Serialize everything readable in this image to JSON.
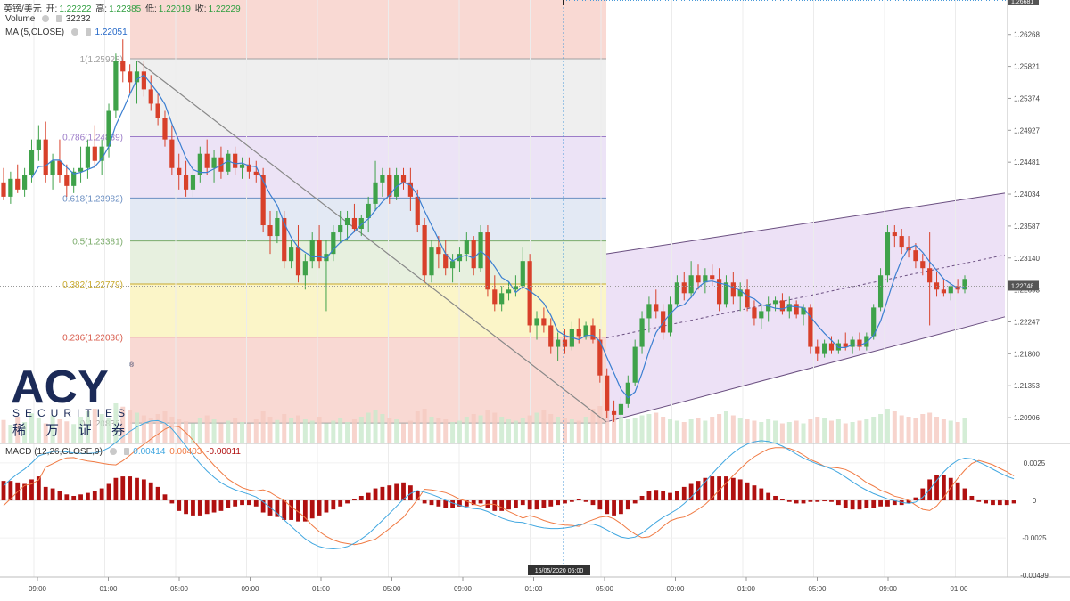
{
  "header": {
    "symbol": "英镑/美元",
    "ohlc_labels": [
      "开:",
      "高:",
      "低:",
      "收:"
    ],
    "ohlc_values": [
      "1.22222",
      "1.22385",
      "1.22019",
      "1.22229"
    ],
    "volume_label": "Volume",
    "volume_value": "32232",
    "ma_label": "MA (5,CLOSE)",
    "ma_value": "1.22051",
    "macd_label": "MACD (12,26,CLOSE,9)",
    "macd_values": [
      "0.00414",
      "0.00403",
      "-0.00011"
    ]
  },
  "logo": {
    "name": "ACY",
    "sub": "SECURITIES",
    "cn": "稀万证券",
    "reg": "®"
  },
  "colors": {
    "up": "#3fa24a",
    "down": "#d8402a",
    "ma": "#3b7fd1",
    "macd_line": "#41a7e0",
    "signal_line": "#f07a43",
    "hist": "#b01010",
    "channel_fill": "#eadcf5",
    "channel_line": "#6a4f80"
  },
  "chart_data": {
    "type": "candlestick",
    "price_axis_ticks": [
      "1.26268",
      "1.25821",
      "1.25374",
      "1.24927",
      "1.24481",
      "1.24034",
      "1.23587",
      "1.23140",
      "1.22693",
      "1.22247",
      "1.21800",
      "1.21353",
      "1.20906"
    ],
    "current_price_label": "1.22748",
    "top_price_label": "1.26681",
    "macd_axis_ticks": [
      "0.0025",
      "0",
      "-0.0025",
      "-0.00499"
    ],
    "time_axis_ticks": [
      "09:00",
      "01:00",
      "05:00",
      "09:00",
      "01:00",
      "05:00",
      "09:00",
      "01:00",
      "05:00",
      "09:00",
      "01:00",
      "05:00",
      "09:00",
      "01:00"
    ],
    "crosshair_label": "15/05/2020 05:00",
    "fib_levels": [
      {
        "label": "1(1.25928)",
        "value": 1.25928,
        "color": "#a0a0a0"
      },
      {
        "label": "0.786(1.24839)",
        "value": 1.24839,
        "color": "#9c7cc8"
      },
      {
        "label": "0.618(1.23982)",
        "value": 1.23982,
        "color": "#6a8ec2"
      },
      {
        "label": "0.5(1.23381)",
        "value": 1.23381,
        "color": "#7aab6a"
      },
      {
        "label": "0.382(1.22779)",
        "value": 1.22779,
        "color": "#c8a92c"
      },
      {
        "label": "0.236(1.22036)",
        "value": 1.22036,
        "color": "#d85a4a"
      },
      {
        "label": "0(1.20835)",
        "value": 1.20835,
        "color": "#a0a0a0"
      }
    ],
    "y_range": [
      1.2055,
      1.2675
    ],
    "candles": [
      [
        1.242,
        1.244,
        1.2395,
        1.24
      ],
      [
        1.24,
        1.2435,
        1.239,
        1.2425
      ],
      [
        1.2425,
        1.2445,
        1.2405,
        1.241
      ],
      [
        1.241,
        1.244,
        1.24,
        1.243
      ],
      [
        1.243,
        1.248,
        1.242,
        1.2465
      ],
      [
        1.2465,
        1.25,
        1.245,
        1.248
      ],
      [
        1.248,
        1.2505,
        1.242,
        1.243
      ],
      [
        1.243,
        1.246,
        1.241,
        1.245
      ],
      [
        1.245,
        1.248,
        1.242,
        1.243
      ],
      [
        1.243,
        1.2445,
        1.24,
        1.2415
      ],
      [
        1.2415,
        1.244,
        1.2405,
        1.2435
      ],
      [
        1.2435,
        1.247,
        1.242,
        1.244
      ],
      [
        1.244,
        1.248,
        1.2425,
        1.247
      ],
      [
        1.247,
        1.25,
        1.244,
        1.245
      ],
      [
        1.245,
        1.248,
        1.243,
        1.247
      ],
      [
        1.247,
        1.253,
        1.2455,
        1.252
      ],
      [
        1.252,
        1.26,
        1.251,
        1.259
      ],
      [
        1.259,
        1.262,
        1.256,
        1.2575
      ],
      [
        1.2575,
        1.2585,
        1.2545,
        1.256
      ],
      [
        1.256,
        1.259,
        1.253,
        1.2575
      ],
      [
        1.2575,
        1.259,
        1.254,
        1.255
      ],
      [
        1.255,
        1.257,
        1.252,
        1.253
      ],
      [
        1.253,
        1.2545,
        1.25,
        1.251
      ],
      [
        1.251,
        1.252,
        1.247,
        1.248
      ],
      [
        1.248,
        1.25,
        1.243,
        1.244
      ],
      [
        1.244,
        1.246,
        1.241,
        1.243
      ],
      [
        1.243,
        1.245,
        1.24,
        1.241
      ],
      [
        1.241,
        1.244,
        1.24,
        1.243
      ],
      [
        1.243,
        1.247,
        1.242,
        1.246
      ],
      [
        1.246,
        1.248,
        1.243,
        1.244
      ],
      [
        1.244,
        1.2465,
        1.242,
        1.2455
      ],
      [
        1.2455,
        1.247,
        1.2425,
        1.2435
      ],
      [
        1.2435,
        1.2465,
        1.243,
        1.246
      ],
      [
        1.246,
        1.247,
        1.243,
        1.244
      ],
      [
        1.244,
        1.2455,
        1.2425,
        1.2445
      ],
      [
        1.2445,
        1.2455,
        1.2425,
        1.2435
      ],
      [
        1.2435,
        1.245,
        1.242,
        1.243
      ],
      [
        1.243,
        1.244,
        1.235,
        1.236
      ],
      [
        1.236,
        1.238,
        1.232,
        1.2345
      ],
      [
        1.2345,
        1.238,
        1.2335,
        1.237
      ],
      [
        1.237,
        1.238,
        1.23,
        1.231
      ],
      [
        1.231,
        1.234,
        1.23,
        1.233
      ],
      [
        1.233,
        1.236,
        1.228,
        1.229
      ],
      [
        1.229,
        1.232,
        1.227,
        1.231
      ],
      [
        1.231,
        1.235,
        1.23,
        1.234
      ],
      [
        1.234,
        1.236,
        1.23,
        1.231
      ],
      [
        1.231,
        1.234,
        1.224,
        1.232
      ],
      [
        1.232,
        1.236,
        1.231,
        1.235
      ],
      [
        1.235,
        1.238,
        1.2335,
        1.236
      ],
      [
        1.236,
        1.238,
        1.234,
        1.237
      ],
      [
        1.237,
        1.239,
        1.235,
        1.2355
      ],
      [
        1.2355,
        1.2375,
        1.2345,
        1.237
      ],
      [
        1.237,
        1.24,
        1.235,
        1.239
      ],
      [
        1.239,
        1.245,
        1.238,
        1.242
      ],
      [
        1.242,
        1.244,
        1.24,
        1.243
      ],
      [
        1.243,
        1.244,
        1.239,
        1.24
      ],
      [
        1.24,
        1.244,
        1.2395,
        1.243
      ],
      [
        1.243,
        1.244,
        1.241,
        1.242
      ],
      [
        1.242,
        1.244,
        1.238,
        1.24
      ],
      [
        1.24,
        1.241,
        1.235,
        1.236
      ],
      [
        1.236,
        1.237,
        1.228,
        1.229
      ],
      [
        1.229,
        1.234,
        1.228,
        1.233
      ],
      [
        1.233,
        1.2345,
        1.23,
        1.232
      ],
      [
        1.232,
        1.234,
        1.229,
        1.23
      ],
      [
        1.23,
        1.232,
        1.228,
        1.231
      ],
      [
        1.231,
        1.233,
        1.2295,
        1.232
      ],
      [
        1.232,
        1.235,
        1.231,
        1.234
      ],
      [
        1.234,
        1.2345,
        1.229,
        1.23
      ],
      [
        1.23,
        1.236,
        1.2295,
        1.235
      ],
      [
        1.235,
        1.236,
        1.226,
        1.227
      ],
      [
        1.227,
        1.229,
        1.224,
        1.225
      ],
      [
        1.225,
        1.2275,
        1.224,
        1.2265
      ],
      [
        1.2265,
        1.228,
        1.2255,
        1.227
      ],
      [
        1.227,
        1.229,
        1.226,
        1.2275
      ],
      [
        1.2275,
        1.233,
        1.227,
        1.231
      ],
      [
        1.231,
        1.232,
        1.221,
        1.222
      ],
      [
        1.222,
        1.224,
        1.22,
        1.223
      ],
      [
        1.223,
        1.2245,
        1.221,
        1.222
      ],
      [
        1.222,
        1.223,
        1.218,
        1.219
      ],
      [
        1.219,
        1.221,
        1.217,
        1.22
      ],
      [
        1.22,
        1.2215,
        1.218,
        1.219
      ],
      [
        1.219,
        1.2225,
        1.2185,
        1.2215
      ],
      [
        1.2215,
        1.223,
        1.2195,
        1.2205
      ],
      [
        1.2205,
        1.2225,
        1.22,
        1.222
      ],
      [
        1.222,
        1.223,
        1.2195,
        1.22
      ],
      [
        1.22,
        1.2215,
        1.214,
        1.215
      ],
      [
        1.215,
        1.216,
        1.209,
        1.21
      ],
      [
        1.21,
        1.2115,
        1.2085,
        1.2095
      ],
      [
        1.2095,
        1.212,
        1.209,
        1.211
      ],
      [
        1.211,
        1.215,
        1.2105,
        1.214
      ],
      [
        1.214,
        1.22,
        1.2135,
        1.219
      ],
      [
        1.219,
        1.224,
        1.218,
        1.223
      ],
      [
        1.223,
        1.226,
        1.221,
        1.225
      ],
      [
        1.225,
        1.227,
        1.223,
        1.224
      ],
      [
        1.224,
        1.225,
        1.22,
        1.221
      ],
      [
        1.221,
        1.226,
        1.2205,
        1.225
      ],
      [
        1.225,
        1.229,
        1.2245,
        1.228
      ],
      [
        1.228,
        1.2295,
        1.2255,
        1.2265
      ],
      [
        1.2265,
        1.231,
        1.226,
        1.229
      ],
      [
        1.229,
        1.2305,
        1.227,
        1.228
      ],
      [
        1.228,
        1.23,
        1.2265,
        1.229
      ],
      [
        1.229,
        1.2305,
        1.2275,
        1.2285
      ],
      [
        1.2285,
        1.23,
        1.224,
        1.225
      ],
      [
        1.225,
        1.229,
        1.2245,
        1.228
      ],
      [
        1.228,
        1.2295,
        1.225,
        1.226
      ],
      [
        1.226,
        1.228,
        1.224,
        1.227
      ],
      [
        1.227,
        1.2285,
        1.224,
        1.2245
      ],
      [
        1.2245,
        1.2255,
        1.222,
        1.223
      ],
      [
        1.223,
        1.225,
        1.2215,
        1.224
      ],
      [
        1.224,
        1.226,
        1.2225,
        1.225
      ],
      [
        1.225,
        1.226,
        1.224,
        1.2255
      ],
      [
        1.2255,
        1.2265,
        1.2235,
        1.224
      ],
      [
        1.224,
        1.226,
        1.223,
        1.225
      ],
      [
        1.225,
        1.2255,
        1.223,
        1.2235
      ],
      [
        1.2235,
        1.225,
        1.222,
        1.2245
      ],
      [
        1.2245,
        1.225,
        1.218,
        1.219
      ],
      [
        1.219,
        1.22,
        1.217,
        1.218
      ],
      [
        1.218,
        1.22,
        1.2175,
        1.2195
      ],
      [
        1.2195,
        1.2205,
        1.218,
        1.2185
      ],
      [
        1.2185,
        1.22,
        1.218,
        1.2195
      ],
      [
        1.2195,
        1.221,
        1.2185,
        1.219
      ],
      [
        1.219,
        1.2205,
        1.218,
        1.22
      ],
      [
        1.22,
        1.221,
        1.2185,
        1.219
      ],
      [
        1.219,
        1.221,
        1.2185,
        1.2205
      ],
      [
        1.2205,
        1.225,
        1.22,
        1.2245
      ],
      [
        1.2245,
        1.23,
        1.224,
        1.229
      ],
      [
        1.229,
        1.236,
        1.228,
        1.235
      ],
      [
        1.235,
        1.236,
        1.233,
        1.2345
      ],
      [
        1.2345,
        1.2355,
        1.232,
        1.233
      ],
      [
        1.233,
        1.2345,
        1.2315,
        1.2325
      ],
      [
        1.2325,
        1.2335,
        1.23,
        1.231
      ],
      [
        1.231,
        1.232,
        1.229,
        1.23
      ],
      [
        1.23,
        1.235,
        1.222,
        1.228
      ],
      [
        1.228,
        1.2295,
        1.226,
        1.227
      ],
      [
        1.227,
        1.2285,
        1.226,
        1.2265
      ],
      [
        1.2265,
        1.228,
        1.2255,
        1.2275
      ],
      [
        1.2275,
        1.2285,
        1.2265,
        1.227
      ],
      [
        1.227,
        1.229,
        1.2265,
        1.2285
      ]
    ],
    "volume": [
      35,
      28,
      40,
      32,
      45,
      38,
      30,
      42,
      36,
      33,
      29,
      40,
      48,
      52,
      44,
      38,
      60,
      55,
      50,
      46,
      42,
      38,
      44,
      48,
      40,
      36,
      33,
      30,
      38,
      42,
      36,
      30,
      34,
      38,
      32,
      30,
      36,
      48,
      40,
      35,
      44,
      38,
      42,
      36,
      34,
      40,
      30,
      34,
      38,
      32,
      36,
      40,
      46,
      50,
      44,
      38,
      36,
      30,
      34,
      48,
      52,
      40,
      38,
      36,
      32,
      34,
      40,
      44,
      42,
      50,
      46,
      40,
      36,
      34,
      38,
      42,
      46,
      50,
      44,
      40,
      38,
      36,
      34,
      40,
      52,
      56,
      48,
      44,
      40,
      36,
      38,
      42,
      44,
      46,
      40,
      36,
      34,
      32,
      36,
      38,
      34,
      40,
      44,
      48,
      42,
      38,
      36,
      34,
      32,
      36,
      34,
      30,
      32,
      34,
      30,
      36,
      40,
      38,
      34,
      36,
      30,
      32,
      34,
      36,
      40,
      44,
      52,
      48,
      42,
      40,
      38,
      44,
      46,
      40,
      36,
      34,
      32,
      38
    ],
    "macd_hist": [
      0.0013,
      0.0013,
      0.0012,
      0.0011,
      0.0014,
      0.0016,
      0.0009,
      0.0008,
      0.0006,
      0.0004,
      0.0003,
      0.0004,
      0.0005,
      0.0006,
      0.0008,
      0.0011,
      0.0015,
      0.0016,
      0.0016,
      0.0015,
      0.0014,
      0.0012,
      0.0009,
      0.0004,
      -0.0002,
      -0.0007,
      -0.0009,
      -0.001,
      -0.001,
      -0.0009,
      -0.0008,
      -0.0007,
      -0.0005,
      -0.0004,
      -0.0003,
      -0.0003,
      -0.0004,
      -0.0008,
      -0.001,
      -0.0011,
      -0.0013,
      -0.0013,
      -0.0014,
      -0.0014,
      -0.0012,
      -0.001,
      -0.0008,
      -0.0006,
      -0.0004,
      -0.0002,
      0.0001,
      0.0003,
      0.0005,
      0.0008,
      0.0009,
      0.001,
      0.0011,
      0.0012,
      0.001,
      0.0006,
      -0.0002,
      -0.0003,
      -0.0004,
      -0.0005,
      -0.0005,
      -0.0004,
      -0.0004,
      -0.0003,
      -0.0002,
      -0.0005,
      -0.0007,
      -0.0007,
      -0.0006,
      -0.0005,
      -0.0003,
      -0.0006,
      -0.0006,
      -0.0005,
      -0.0004,
      -0.0003,
      -0.0002,
      -0.0001,
      0.0001,
      -0.0001,
      -0.0003,
      -0.0006,
      -0.0009,
      -0.001,
      -0.0009,
      -0.0006,
      -0.0002,
      0.0003,
      0.0006,
      0.0007,
      0.0006,
      0.0005,
      0.0006,
      0.0009,
      0.0011,
      0.0013,
      0.0015,
      0.0016,
      0.0016,
      0.0016,
      0.0015,
      0.0014,
      0.0012,
      0.001,
      0.0008,
      0.0005,
      0.0003,
      0.0001,
      -0.0001,
      -0.0002,
      -0.0002,
      -0.0001,
      -0.0001,
      0.0,
      -0.0001,
      -0.0003,
      -0.0005,
      -0.0006,
      -0.0006,
      -0.0005,
      -0.0005,
      -0.0004,
      -0.0004,
      -0.0003,
      -0.0003,
      -0.0002,
      0.0002,
      0.0008,
      0.0014,
      0.0017,
      0.0017,
      0.0015,
      0.0012,
      0.0008,
      0.0003,
      -0.0001,
      -0.0002,
      -0.0003,
      -0.0003,
      -0.0003,
      -0.0002
    ],
    "macd_range": [
      -0.0051,
      0.0038
    ]
  }
}
